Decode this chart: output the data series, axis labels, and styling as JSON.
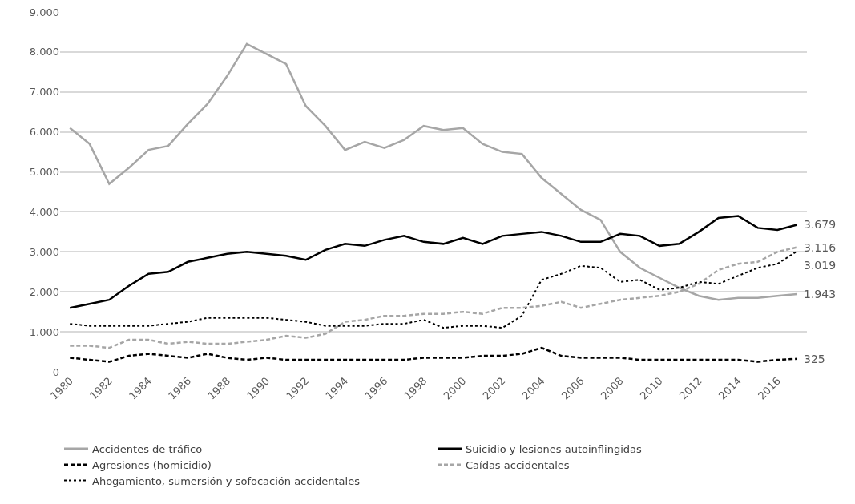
{
  "chart_data": {
    "type": "line",
    "x": [
      1980,
      1981,
      1982,
      1983,
      1984,
      1985,
      1986,
      1987,
      1988,
      1989,
      1990,
      1991,
      1992,
      1993,
      1994,
      1995,
      1996,
      1997,
      1998,
      1999,
      2000,
      2001,
      2002,
      2003,
      2004,
      2005,
      2006,
      2007,
      2008,
      2009,
      2010,
      2011,
      2012,
      2013,
      2014,
      2015,
      2016,
      2017
    ],
    "series": [
      {
        "name": "Accidentes de tráfico",
        "color": "#a6a6a6",
        "line_style": "solid",
        "values": [
          6100,
          5700,
          4700,
          5100,
          5550,
          5650,
          6200,
          6700,
          7400,
          8200,
          7950,
          7700,
          6650,
          6150,
          5550,
          5750,
          5600,
          5800,
          6150,
          6050,
          6100,
          5700,
          5500,
          5450,
          4850,
          4450,
          4050,
          3800,
          3000,
          2600,
          2350,
          2100,
          1900,
          1800,
          1850,
          1850,
          1900,
          1943
        ],
        "value_labels": [
          null,
          null,
          null,
          null,
          null,
          null,
          null,
          null,
          null,
          null,
          null,
          null,
          null,
          null,
          null,
          null,
          null,
          null,
          null,
          null,
          null,
          null,
          null,
          null,
          null,
          null,
          null,
          null,
          null,
          null,
          null,
          null,
          null,
          null,
          null,
          null,
          null,
          "1.943"
        ]
      },
      {
        "name": "Suicidio y lesiones autoinflingidas",
        "color": "#000000",
        "line_style": "solid",
        "values": [
          1600,
          1700,
          1800,
          2150,
          2450,
          2500,
          2750,
          2850,
          2950,
          3000,
          2950,
          2900,
          2800,
          3050,
          3200,
          3150,
          3300,
          3400,
          3250,
          3200,
          3350,
          3200,
          3400,
          3450,
          3500,
          3400,
          3250,
          3250,
          3450,
          3400,
          3150,
          3200,
          3500,
          3850,
          3900,
          3600,
          3550,
          3679
        ],
        "value_labels": [
          null,
          null,
          null,
          null,
          null,
          null,
          null,
          null,
          null,
          null,
          null,
          null,
          null,
          null,
          null,
          null,
          null,
          null,
          null,
          null,
          null,
          null,
          null,
          null,
          null,
          null,
          null,
          null,
          null,
          null,
          null,
          null,
          null,
          null,
          null,
          null,
          null,
          "3.679"
        ]
      },
      {
        "name": "Agresiones (homicidio)",
        "color": "#000000",
        "line_style": "dashed",
        "values": [
          350,
          300,
          250,
          400,
          450,
          400,
          350,
          450,
          350,
          300,
          350,
          300,
          300,
          300,
          300,
          300,
          300,
          300,
          350,
          350,
          350,
          400,
          400,
          450,
          600,
          400,
          350,
          350,
          350,
          300,
          300,
          300,
          300,
          300,
          300,
          250,
          300,
          325
        ],
        "value_labels": [
          null,
          null,
          null,
          null,
          null,
          null,
          null,
          null,
          null,
          null,
          null,
          null,
          null,
          null,
          null,
          null,
          null,
          null,
          null,
          null,
          null,
          null,
          null,
          null,
          null,
          null,
          null,
          null,
          null,
          null,
          null,
          null,
          null,
          null,
          null,
          null,
          null,
          "325"
        ]
      },
      {
        "name": "Caídas accidentales",
        "color": "#a6a6a6",
        "line_style": "dashed",
        "values": [
          650,
          650,
          600,
          800,
          800,
          700,
          750,
          700,
          700,
          750,
          800,
          900,
          850,
          950,
          1250,
          1300,
          1400,
          1400,
          1450,
          1450,
          1500,
          1450,
          1600,
          1600,
          1650,
          1750,
          1600,
          1700,
          1800,
          1850,
          1900,
          2000,
          2200,
          2550,
          2700,
          2750,
          3000,
          3116
        ],
        "value_labels": [
          null,
          null,
          null,
          null,
          null,
          null,
          null,
          null,
          null,
          null,
          null,
          null,
          null,
          null,
          null,
          null,
          null,
          null,
          null,
          null,
          null,
          null,
          null,
          null,
          null,
          null,
          null,
          null,
          null,
          null,
          null,
          null,
          null,
          null,
          null,
          null,
          null,
          "3.116"
        ]
      },
      {
        "name": "Ahogamiento, sumersión y sofocación accidentales",
        "color": "#000000",
        "line_style": "dotted",
        "values": [
          1200,
          1150,
          1150,
          1150,
          1150,
          1200,
          1250,
          1350,
          1350,
          1350,
          1350,
          1300,
          1250,
          1150,
          1150,
          1150,
          1200,
          1200,
          1300,
          1100,
          1150,
          1150,
          1100,
          1400,
          2300,
          2450,
          2650,
          2600,
          2250,
          2300,
          2050,
          2100,
          2250,
          2200,
          2400,
          2600,
          2700,
          3019
        ],
        "value_labels": [
          null,
          null,
          null,
          null,
          null,
          null,
          null,
          null,
          null,
          null,
          null,
          null,
          null,
          null,
          null,
          null,
          null,
          null,
          null,
          null,
          null,
          null,
          null,
          null,
          null,
          null,
          null,
          null,
          null,
          null,
          null,
          null,
          null,
          null,
          null,
          null,
          null,
          "3.019"
        ]
      }
    ],
    "xlim": [
      1979.5,
      2017.5
    ],
    "xticks": [
      1980,
      1982,
      1984,
      1986,
      1988,
      1990,
      1992,
      1994,
      1996,
      1998,
      2000,
      2002,
      2004,
      2006,
      2008,
      2010,
      2012,
      2014,
      2016
    ],
    "ylim": [
      0,
      9000
    ],
    "yticks": [
      0,
      {
        "value": 1000,
        "label": "1.000"
      },
      {
        "value": 2000,
        "label": "2.000"
      },
      {
        "value": 3000,
        "label": "3.000"
      },
      {
        "value": 4000,
        "label": "4.000"
      },
      {
        "value": 5000,
        "label": "5.000"
      },
      {
        "value": 6000,
        "label": "6.000"
      },
      {
        "value": 7000,
        "label": "7.000"
      },
      {
        "value": 8000,
        "label": "8.000"
      },
      {
        "value": 9000,
        "label": "9.000"
      }
    ],
    "grid": "y",
    "legend": "bottom"
  }
}
